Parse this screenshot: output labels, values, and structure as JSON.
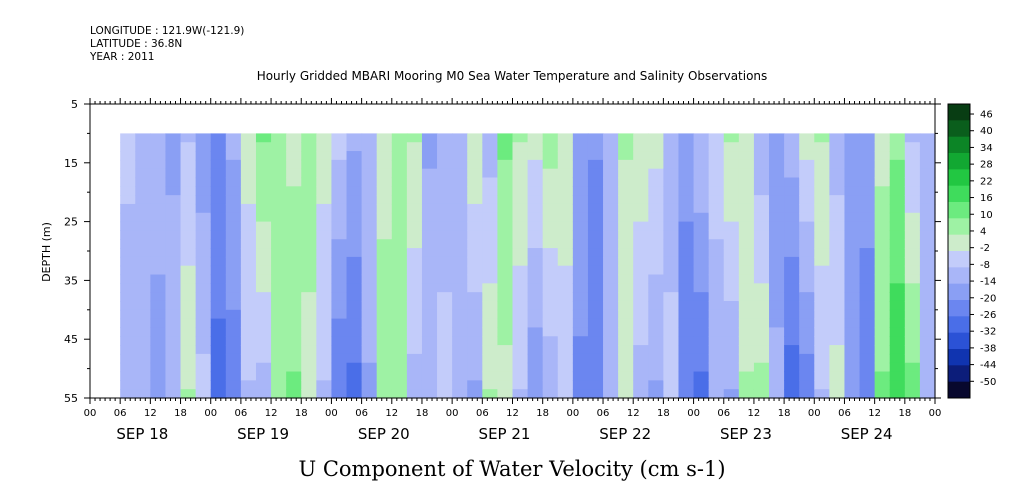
{
  "header": {
    "longitude": "LONGITUDE : 121.9W(-121.9)",
    "latitude": "LATITUDE : 36.8N",
    "year": "YEAR : 2011"
  },
  "chart_data": {
    "type": "heatmap",
    "title": "Hourly Gridded MBARI Mooring M0 Sea Water Temperature and Salinity Observations",
    "bottom_title": "U Component of Water Velocity (cm s-1)",
    "ylabel": "DEPTH (m)",
    "ylim": [
      55,
      5
    ],
    "y_ticks": [
      5,
      15,
      25,
      35,
      45,
      55
    ],
    "data_depth_range": [
      10,
      55
    ],
    "x_range_hours": [
      0,
      168
    ],
    "data_start_hour": 6,
    "x_hour_labels": [
      "00",
      "06",
      "12",
      "18",
      "00",
      "06",
      "12",
      "18",
      "00",
      "06",
      "12",
      "18",
      "00",
      "06",
      "12",
      "18",
      "00",
      "06",
      "12",
      "18",
      "00",
      "06",
      "12",
      "18",
      "00",
      "06",
      "12",
      "18",
      "00"
    ],
    "x_day_labels": [
      "SEP 18",
      "SEP 19",
      "SEP 20",
      "SEP 21",
      "SEP 22",
      "SEP 23",
      "SEP 24"
    ],
    "colorbar": {
      "min": -50,
      "max": 50,
      "labels": [
        "46",
        "40",
        "34",
        "28",
        "22",
        "16",
        "10",
        "4",
        "-2",
        "-8",
        "-14",
        "-20",
        "-26",
        "-32",
        "-38",
        "-44",
        "-50"
      ],
      "colors": [
        "#08082e",
        "#0c1d7a",
        "#1034b0",
        "#2b52d6",
        "#4a6ee8",
        "#6b86f0",
        "#8a9ff4",
        "#a9b6f8",
        "#c3ccfa",
        "#cdeccb",
        "#9ef2a4",
        "#6ceb7f",
        "#3fdc5c",
        "#22c742",
        "#12a832",
        "#0c8526",
        "#0a5e1c",
        "#083d13"
      ]
    },
    "u_profile": {
      "hours": [
        6,
        9,
        12,
        15,
        18,
        21,
        24,
        27,
        30,
        33,
        36,
        39,
        42,
        45,
        48,
        51,
        54,
        57,
        60,
        63,
        66,
        69,
        72,
        75,
        78,
        81,
        84,
        87,
        90,
        93,
        96,
        99,
        102,
        105,
        108,
        111,
        114,
        117,
        120,
        123,
        126,
        129,
        132,
        135,
        138,
        141,
        144,
        147,
        150,
        153,
        156,
        159,
        162,
        165,
        168
      ],
      "u_surface": [
        -4,
        -10,
        -8,
        -12,
        -6,
        -14,
        -18,
        -10,
        2,
        12,
        6,
        4,
        8,
        2,
        -4,
        -10,
        -6,
        4,
        8,
        6,
        -12,
        -8,
        -6,
        4,
        -8,
        12,
        6,
        2,
        8,
        4,
        -12,
        -16,
        -8,
        6,
        4,
        2,
        -8,
        -14,
        -6,
        -4,
        6,
        2,
        -10,
        -14,
        -8,
        2,
        6,
        -8,
        -12,
        -14,
        4,
        10,
        -6,
        -10,
        -12
      ],
      "u_bottom": [
        -10,
        -6,
        -14,
        -8,
        6,
        -4,
        -24,
        -20,
        -6,
        -8,
        8,
        12,
        4,
        -6,
        -22,
        -24,
        -12,
        8,
        6,
        -8,
        -6,
        -4,
        -10,
        -12,
        6,
        4,
        -6,
        -16,
        -10,
        -4,
        -18,
        -22,
        -10,
        2,
        -8,
        -12,
        -4,
        -22,
        -24,
        -8,
        -12,
        6,
        8,
        -10,
        -26,
        -20,
        -6,
        2,
        -12,
        -20,
        12,
        22,
        14,
        -8,
        -10
      ]
    }
  }
}
